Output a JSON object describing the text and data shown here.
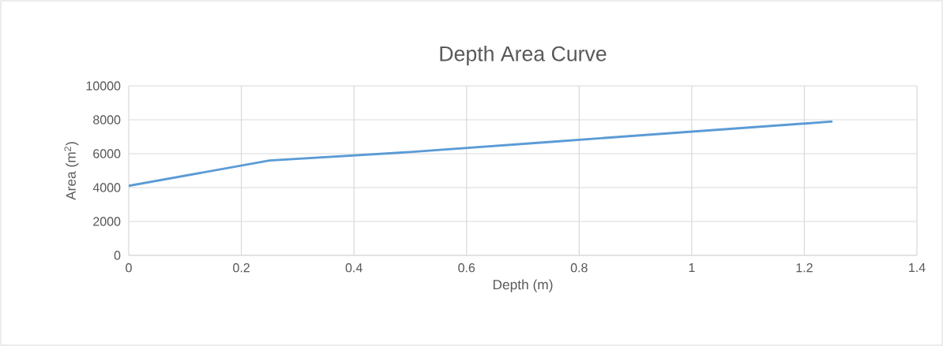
{
  "chart_data": {
    "type": "line",
    "title": "Depth Area Curve",
    "xlabel": "Depth (m)",
    "ylabel": "Area (m$^{2}$)",
    "x": [
      0,
      0.25,
      0.5,
      0.75,
      1,
      1.25
    ],
    "series": [
      {
        "color": "#5b9bd5",
        "values": [
          4100,
          5600,
          6100,
          6700,
          7300,
          7900
        ]
      }
    ],
    "xlim": [
      0,
      1.4
    ],
    "xticks": [
      0,
      0.2,
      0.4,
      0.6,
      0.8,
      1,
      1.2,
      1.4
    ],
    "ylim": [
      0,
      10000
    ],
    "yticks": [
      0,
      2000,
      4000,
      6000,
      8000,
      10000
    ],
    "grid": true,
    "marker": "none",
    "line_style": "solid"
  }
}
